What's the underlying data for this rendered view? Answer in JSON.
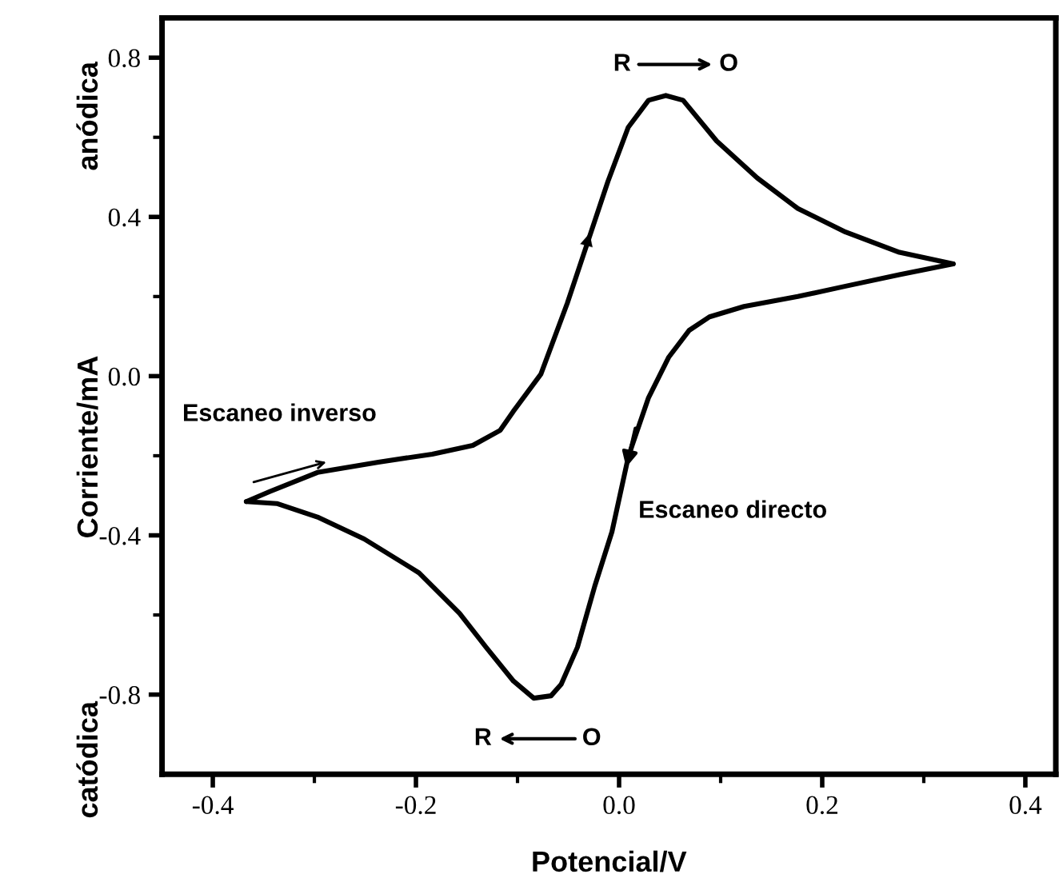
{
  "chart_data": {
    "type": "line",
    "xlabel": "Potencial/V",
    "ylabel": "Corriente/mA",
    "xlim": [
      -0.45,
      0.43
    ],
    "ylim": [
      -1.0,
      0.9
    ],
    "xticks": [
      {
        "value": -0.4,
        "label": "-0.4"
      },
      {
        "value": -0.2,
        "label": "-0.2"
      },
      {
        "value": 0.0,
        "label": "0.0"
      },
      {
        "value": 0.2,
        "label": "0.2"
      },
      {
        "value": 0.4,
        "label": "0.4"
      }
    ],
    "yticks": [
      {
        "value": -0.8,
        "label": "-0.8"
      },
      {
        "value": -0.4,
        "label": "-0.4"
      },
      {
        "value": 0.0,
        "label": "0.0"
      },
      {
        "value": 0.4,
        "label": "0.4"
      },
      {
        "value": 0.8,
        "label": "0.8"
      }
    ],
    "grid": false,
    "legend": false,
    "marker": "none",
    "line_style": "solid",
    "series": [
      {
        "color": "#000000",
        "x": [
          -0.367,
          -0.344,
          -0.297,
          -0.237,
          -0.184,
          -0.144,
          -0.117,
          -0.104,
          -0.077,
          -0.051,
          -0.031,
          -0.011,
          0.009,
          0.029,
          0.046,
          0.063,
          0.096,
          0.136,
          0.176,
          0.223,
          0.276,
          0.329
        ],
        "values": [
          -0.315,
          -0.29,
          -0.242,
          -0.216,
          -0.196,
          -0.174,
          -0.136,
          -0.088,
          0.005,
          0.183,
          0.336,
          0.489,
          0.625,
          0.693,
          0.705,
          0.693,
          0.591,
          0.498,
          0.421,
          0.362,
          0.311,
          0.282
        ]
      },
      {
        "color": "#000000",
        "x": [
          0.329,
          0.276,
          0.223,
          0.176,
          0.123,
          0.089,
          0.069,
          0.049,
          0.029,
          0.013,
          0.009,
          -0.007,
          -0.024,
          -0.041,
          -0.057,
          -0.067,
          -0.084,
          -0.104,
          -0.131,
          -0.157,
          -0.197,
          -0.251,
          -0.297,
          -0.337,
          -0.367
        ],
        "values": [
          0.282,
          0.255,
          0.226,
          0.2,
          0.175,
          0.149,
          0.115,
          0.048,
          -0.054,
          -0.173,
          -0.204,
          -0.391,
          -0.528,
          -0.681,
          -0.774,
          -0.803,
          -0.809,
          -0.766,
          -0.681,
          -0.596,
          -0.494,
          -0.409,
          -0.354,
          -0.32,
          -0.315
        ]
      }
    ],
    "annotations": [
      "R",
      "O",
      "R",
      "O",
      "Escaneo inverso",
      "Escaneo directo",
      "anódica",
      "catódica"
    ]
  }
}
